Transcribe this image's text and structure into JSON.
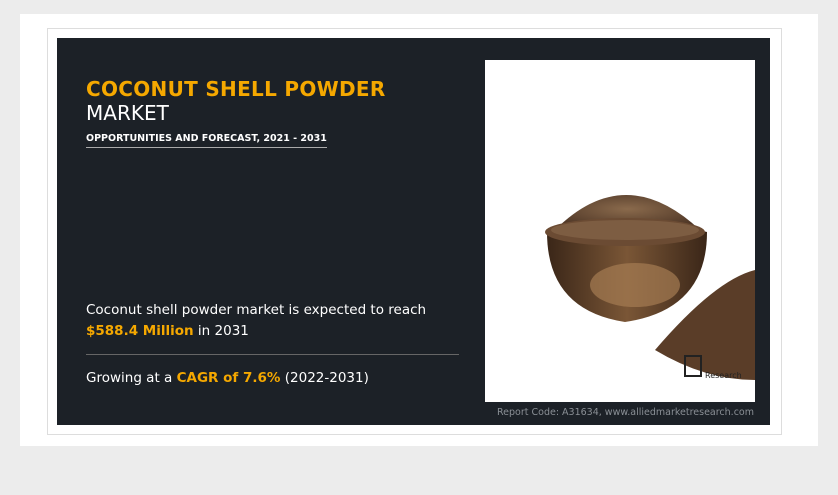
{
  "title": {
    "highlight": "COCONUT SHELL POWDER",
    "rest": "MARKET"
  },
  "subtitle": "OPPORTUNITIES AND FORECAST, 2021 - 2031",
  "stat1": {
    "text": "Coconut shell powder market is expected to reach",
    "highlight": "$588.4 Million",
    "suffix": "in 2031"
  },
  "stat2": {
    "prefix": "Growing at a",
    "highlight": "CAGR of 7.6%",
    "suffix": "(2022-2031)"
  },
  "report_code": "Report Code: A31634, www.alliedmarketresearch.com",
  "logo": "Research"
}
